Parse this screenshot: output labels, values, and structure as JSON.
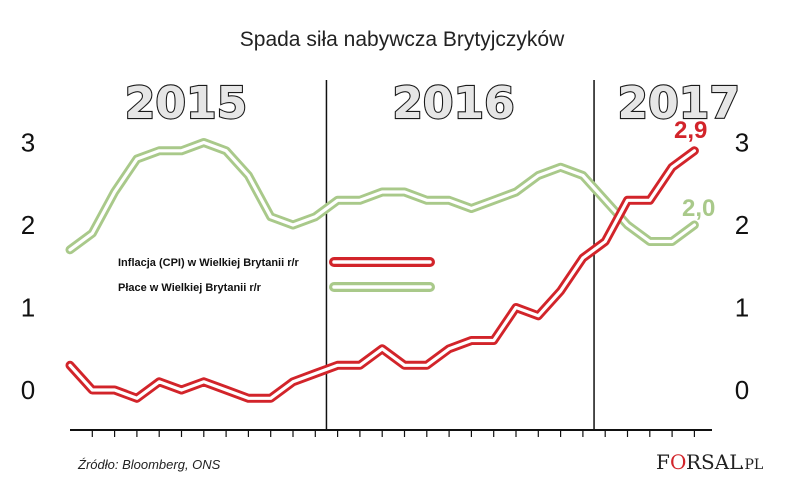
{
  "chart_data": {
    "type": "line",
    "title": "Spada siła nabywcza Brytyjczyków",
    "year_labels": [
      "2015",
      "2016",
      "2017"
    ],
    "y_ticks_left": [
      "0",
      "1",
      "2",
      "3"
    ],
    "y_ticks_right": [
      "0",
      "1",
      "2",
      "3"
    ],
    "ylim": [
      -0.45,
      3.25
    ],
    "series": [
      {
        "name": "Inflacja (CPI) w Wielkiej Brytanii r/r",
        "color": "#d2242a",
        "end_label": "2,9",
        "values": [
          0.3,
          0.0,
          0.0,
          -0.1,
          0.1,
          0.0,
          0.1,
          0.0,
          -0.1,
          -0.1,
          0.1,
          0.2,
          0.3,
          0.3,
          0.5,
          0.3,
          0.3,
          0.5,
          0.6,
          0.6,
          1.0,
          0.9,
          1.2,
          1.6,
          1.8,
          2.3,
          2.3,
          2.7,
          2.9
        ]
      },
      {
        "name": "Płace w Wielkiej Brytanii r/r",
        "color": "#a9c98a",
        "end_label": "2,0",
        "values": [
          1.7,
          1.9,
          2.4,
          2.8,
          2.9,
          2.9,
          3.0,
          2.9,
          2.6,
          2.1,
          2.0,
          2.1,
          2.3,
          2.3,
          2.4,
          2.4,
          2.3,
          2.3,
          2.2,
          2.3,
          2.4,
          2.6,
          2.7,
          2.6,
          2.3,
          2.0,
          1.8,
          1.8,
          2.0
        ]
      }
    ],
    "legend_position": "center",
    "grid": false
  },
  "source": "Źródło: Bloomberg, ONS",
  "brand": {
    "f": "F",
    "o": "O",
    "rest": "RSAL",
    "suffix": ".PL"
  }
}
